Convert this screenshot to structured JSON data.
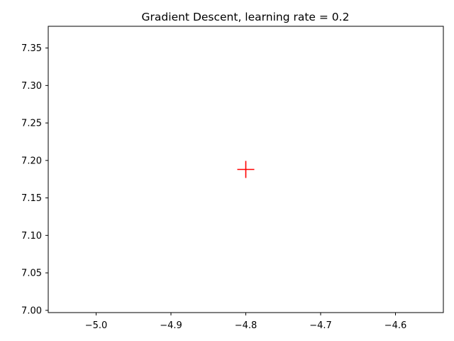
{
  "chart_data": {
    "type": "scatter",
    "title": "Gradient Descent, learning rate = 0.2",
    "xlabel": "",
    "ylabel": "",
    "xlim": [
      -5.064,
      -4.536
    ],
    "ylim": [
      6.997,
      7.379
    ],
    "xticks": [
      -5.0,
      -4.9,
      -4.8,
      -4.7,
      -4.6
    ],
    "xtick_labels": [
      "−5.0",
      "−4.9",
      "−4.8",
      "−4.7",
      "−4.6"
    ],
    "yticks": [
      7.0,
      7.05,
      7.1,
      7.15,
      7.2,
      7.25,
      7.3,
      7.35
    ],
    "ytick_labels": [
      "7.00",
      "7.05",
      "7.10",
      "7.15",
      "7.20",
      "7.25",
      "7.30",
      "7.35"
    ],
    "grid": false,
    "legend": "none",
    "series": [
      {
        "marker": "plus",
        "color": "#ff0000",
        "points": [
          {
            "x": -4.8,
            "y": 7.188
          }
        ]
      }
    ]
  }
}
